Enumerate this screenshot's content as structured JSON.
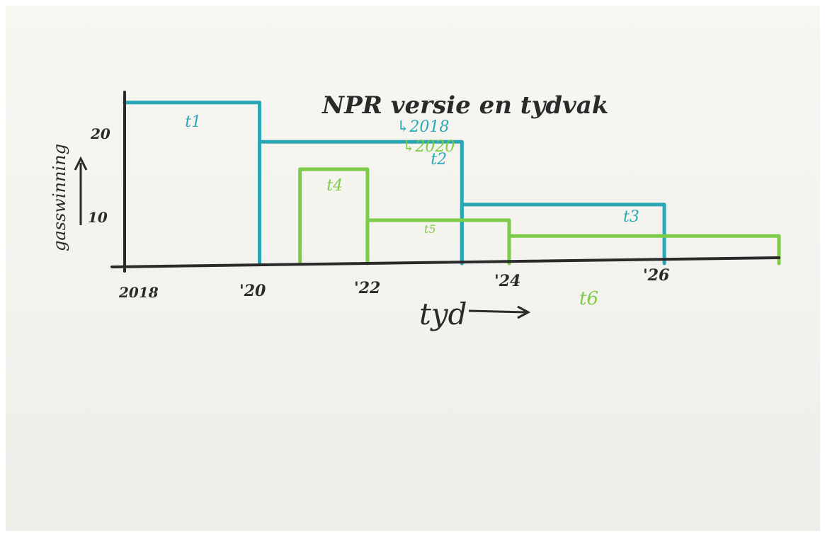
{
  "colors": {
    "ink": "#2a2a2a",
    "teal": "#2aa7b5",
    "green": "#7ecb4a"
  },
  "chart_data": {
    "type": "line",
    "title": "NPR versie en tydvak",
    "legend": [
      "↳2018",
      "↳2020"
    ],
    "xlabel": "tyd",
    "ylabel": "gasswinning",
    "x_tick_labels": [
      "2018",
      "'20",
      "'22",
      "'24",
      "'26"
    ],
    "y_tick_labels": [
      "20",
      "10"
    ],
    "x_ticks": [
      2018,
      2020,
      2022,
      2024,
      2026
    ],
    "y_ticks": [
      20,
      10
    ],
    "xlim": [
      2018,
      2027.7
    ],
    "ylim": [
      0,
      24
    ],
    "series": [
      {
        "name": "↳2018",
        "color": "#2aa7b5",
        "segments": [
          {
            "label": "t1",
            "x0": 2018,
            "x1": 2020,
            "y": 20.5
          },
          {
            "label": "t2",
            "x0": 2020,
            "x1": 2023,
            "y": 15.5
          },
          {
            "label": "t3",
            "x0": 2023,
            "x1": 2026,
            "y": 7.5
          }
        ]
      },
      {
        "name": "↳2020",
        "color": "#7ecb4a",
        "segments": [
          {
            "label": "t4",
            "x0": 2020.6,
            "x1": 2021.6,
            "y": 12
          },
          {
            "label": "t5",
            "x0": 2021.6,
            "x1": 2023.7,
            "y": 5.5
          },
          {
            "label": "t6",
            "x0": 2023.7,
            "x1": 2027.7,
            "y": 3.5
          }
        ]
      }
    ]
  }
}
